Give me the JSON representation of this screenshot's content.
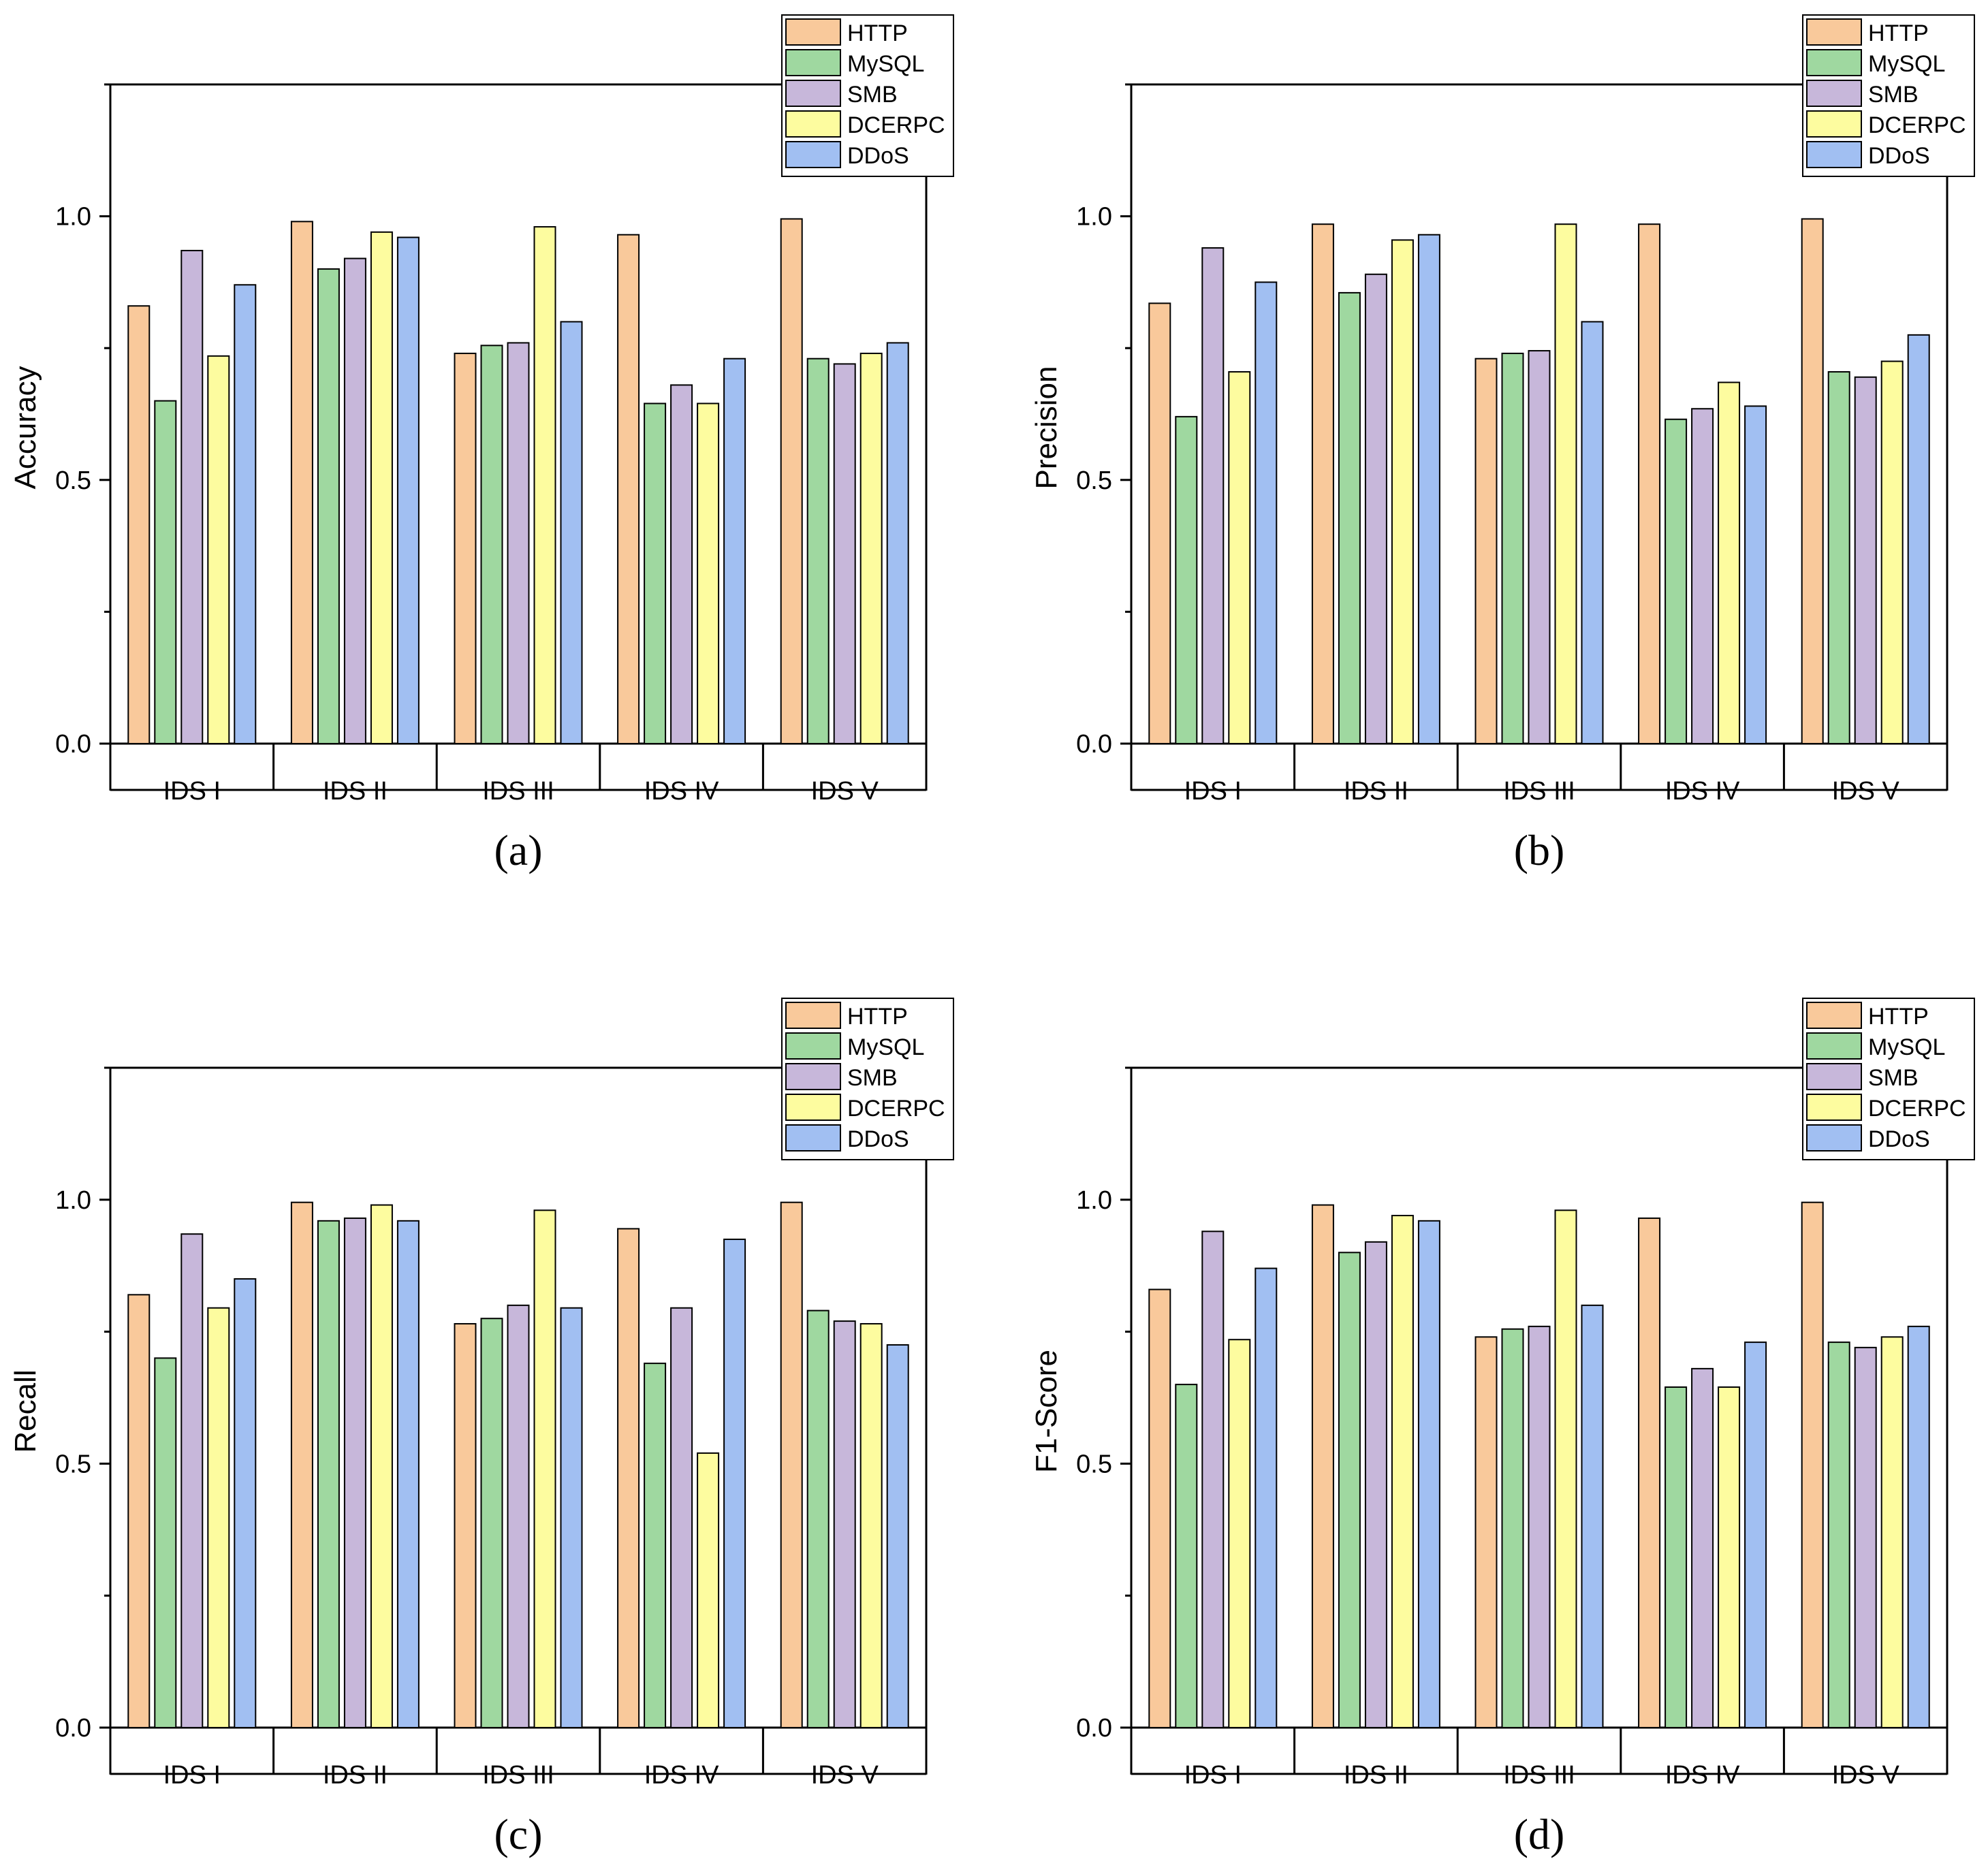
{
  "figure": {
    "legend_entries": [
      "HTTP",
      "MySQL",
      "SMB",
      "DCERPC",
      "DDoS"
    ]
  },
  "chart_data": [
    {
      "type": "bar",
      "panel": "a",
      "caption": "(a)",
      "ylabel": "Accuracy",
      "xlabel": "",
      "ylim": [
        0,
        1.25
      ],
      "yticks": [
        "0.0",
        "0.5",
        "1.0"
      ],
      "categories": [
        "IDS I",
        "IDS II",
        "IDS III",
        "IDS IV",
        "IDS V"
      ],
      "legend_position": "top-right",
      "series": [
        {
          "name": "HTTP",
          "color": "#f9c99b",
          "values": [
            0.83,
            0.99,
            0.74,
            0.965,
            0.995
          ]
        },
        {
          "name": "MySQL",
          "color": "#9fd8a0",
          "values": [
            0.65,
            0.9,
            0.755,
            0.645,
            0.73
          ]
        },
        {
          "name": "SMB",
          "color": "#c7b7da",
          "values": [
            0.935,
            0.92,
            0.76,
            0.68,
            0.72
          ]
        },
        {
          "name": "DCERPC",
          "color": "#fdfc9f",
          "values": [
            0.735,
            0.97,
            0.98,
            0.645,
            0.74
          ]
        },
        {
          "name": "DDoS",
          "color": "#a1bff2",
          "values": [
            0.87,
            0.96,
            0.8,
            0.73,
            0.76
          ]
        }
      ]
    },
    {
      "type": "bar",
      "panel": "b",
      "caption": "(b)",
      "ylabel": "Precision",
      "xlabel": "",
      "ylim": [
        0,
        1.25
      ],
      "yticks": [
        "0.0",
        "0.5",
        "1.0"
      ],
      "categories": [
        "IDS I",
        "IDS II",
        "IDS III",
        "IDS IV",
        "IDS V"
      ],
      "legend_position": "top-right",
      "series": [
        {
          "name": "HTTP",
          "color": "#f9c99b",
          "values": [
            0.835,
            0.985,
            0.73,
            0.985,
            0.995
          ]
        },
        {
          "name": "MySQL",
          "color": "#9fd8a0",
          "values": [
            0.62,
            0.855,
            0.74,
            0.615,
            0.705
          ]
        },
        {
          "name": "SMB",
          "color": "#c7b7da",
          "values": [
            0.94,
            0.89,
            0.745,
            0.635,
            0.695
          ]
        },
        {
          "name": "DCERPC",
          "color": "#fdfc9f",
          "values": [
            0.705,
            0.955,
            0.985,
            0.685,
            0.725
          ]
        },
        {
          "name": "DDoS",
          "color": "#a1bff2",
          "values": [
            0.875,
            0.965,
            0.8,
            0.64,
            0.775
          ]
        }
      ]
    },
    {
      "type": "bar",
      "panel": "c",
      "caption": "(c)",
      "ylabel": "Recall",
      "xlabel": "",
      "ylim": [
        0,
        1.25
      ],
      "yticks": [
        "0.0",
        "0.5",
        "1.0"
      ],
      "categories": [
        "IDS I",
        "IDS II",
        "IDS III",
        "IDS IV",
        "IDS V"
      ],
      "legend_position": "top-right",
      "series": [
        {
          "name": "HTTP",
          "color": "#f9c99b",
          "values": [
            0.82,
            0.995,
            0.765,
            0.945,
            0.995
          ]
        },
        {
          "name": "MySQL",
          "color": "#9fd8a0",
          "values": [
            0.7,
            0.96,
            0.775,
            0.69,
            0.79
          ]
        },
        {
          "name": "SMB",
          "color": "#c7b7da",
          "values": [
            0.935,
            0.965,
            0.8,
            0.795,
            0.77
          ]
        },
        {
          "name": "DCERPC",
          "color": "#fdfc9f",
          "values": [
            0.795,
            0.99,
            0.98,
            0.52,
            0.765
          ]
        },
        {
          "name": "DDoS",
          "color": "#a1bff2",
          "values": [
            0.85,
            0.96,
            0.795,
            0.925,
            0.725
          ]
        }
      ]
    },
    {
      "type": "bar",
      "panel": "d",
      "caption": "(d)",
      "ylabel": "F1-Score",
      "xlabel": "",
      "ylim": [
        0,
        1.25
      ],
      "yticks": [
        "0.0",
        "0.5",
        "1.0"
      ],
      "categories": [
        "IDS I",
        "IDS II",
        "IDS III",
        "IDS IV",
        "IDS V"
      ],
      "legend_position": "top-right",
      "series": [
        {
          "name": "HTTP",
          "color": "#f9c99b",
          "values": [
            0.83,
            0.99,
            0.74,
            0.965,
            0.995
          ]
        },
        {
          "name": "MySQL",
          "color": "#9fd8a0",
          "values": [
            0.65,
            0.9,
            0.755,
            0.645,
            0.73
          ]
        },
        {
          "name": "SMB",
          "color": "#c7b7da",
          "values": [
            0.94,
            0.92,
            0.76,
            0.68,
            0.72
          ]
        },
        {
          "name": "DCERPC",
          "color": "#fdfc9f",
          "values": [
            0.735,
            0.97,
            0.98,
            0.645,
            0.74
          ]
        },
        {
          "name": "DDoS",
          "color": "#a1bff2",
          "values": [
            0.87,
            0.96,
            0.8,
            0.73,
            0.76
          ]
        }
      ]
    }
  ]
}
